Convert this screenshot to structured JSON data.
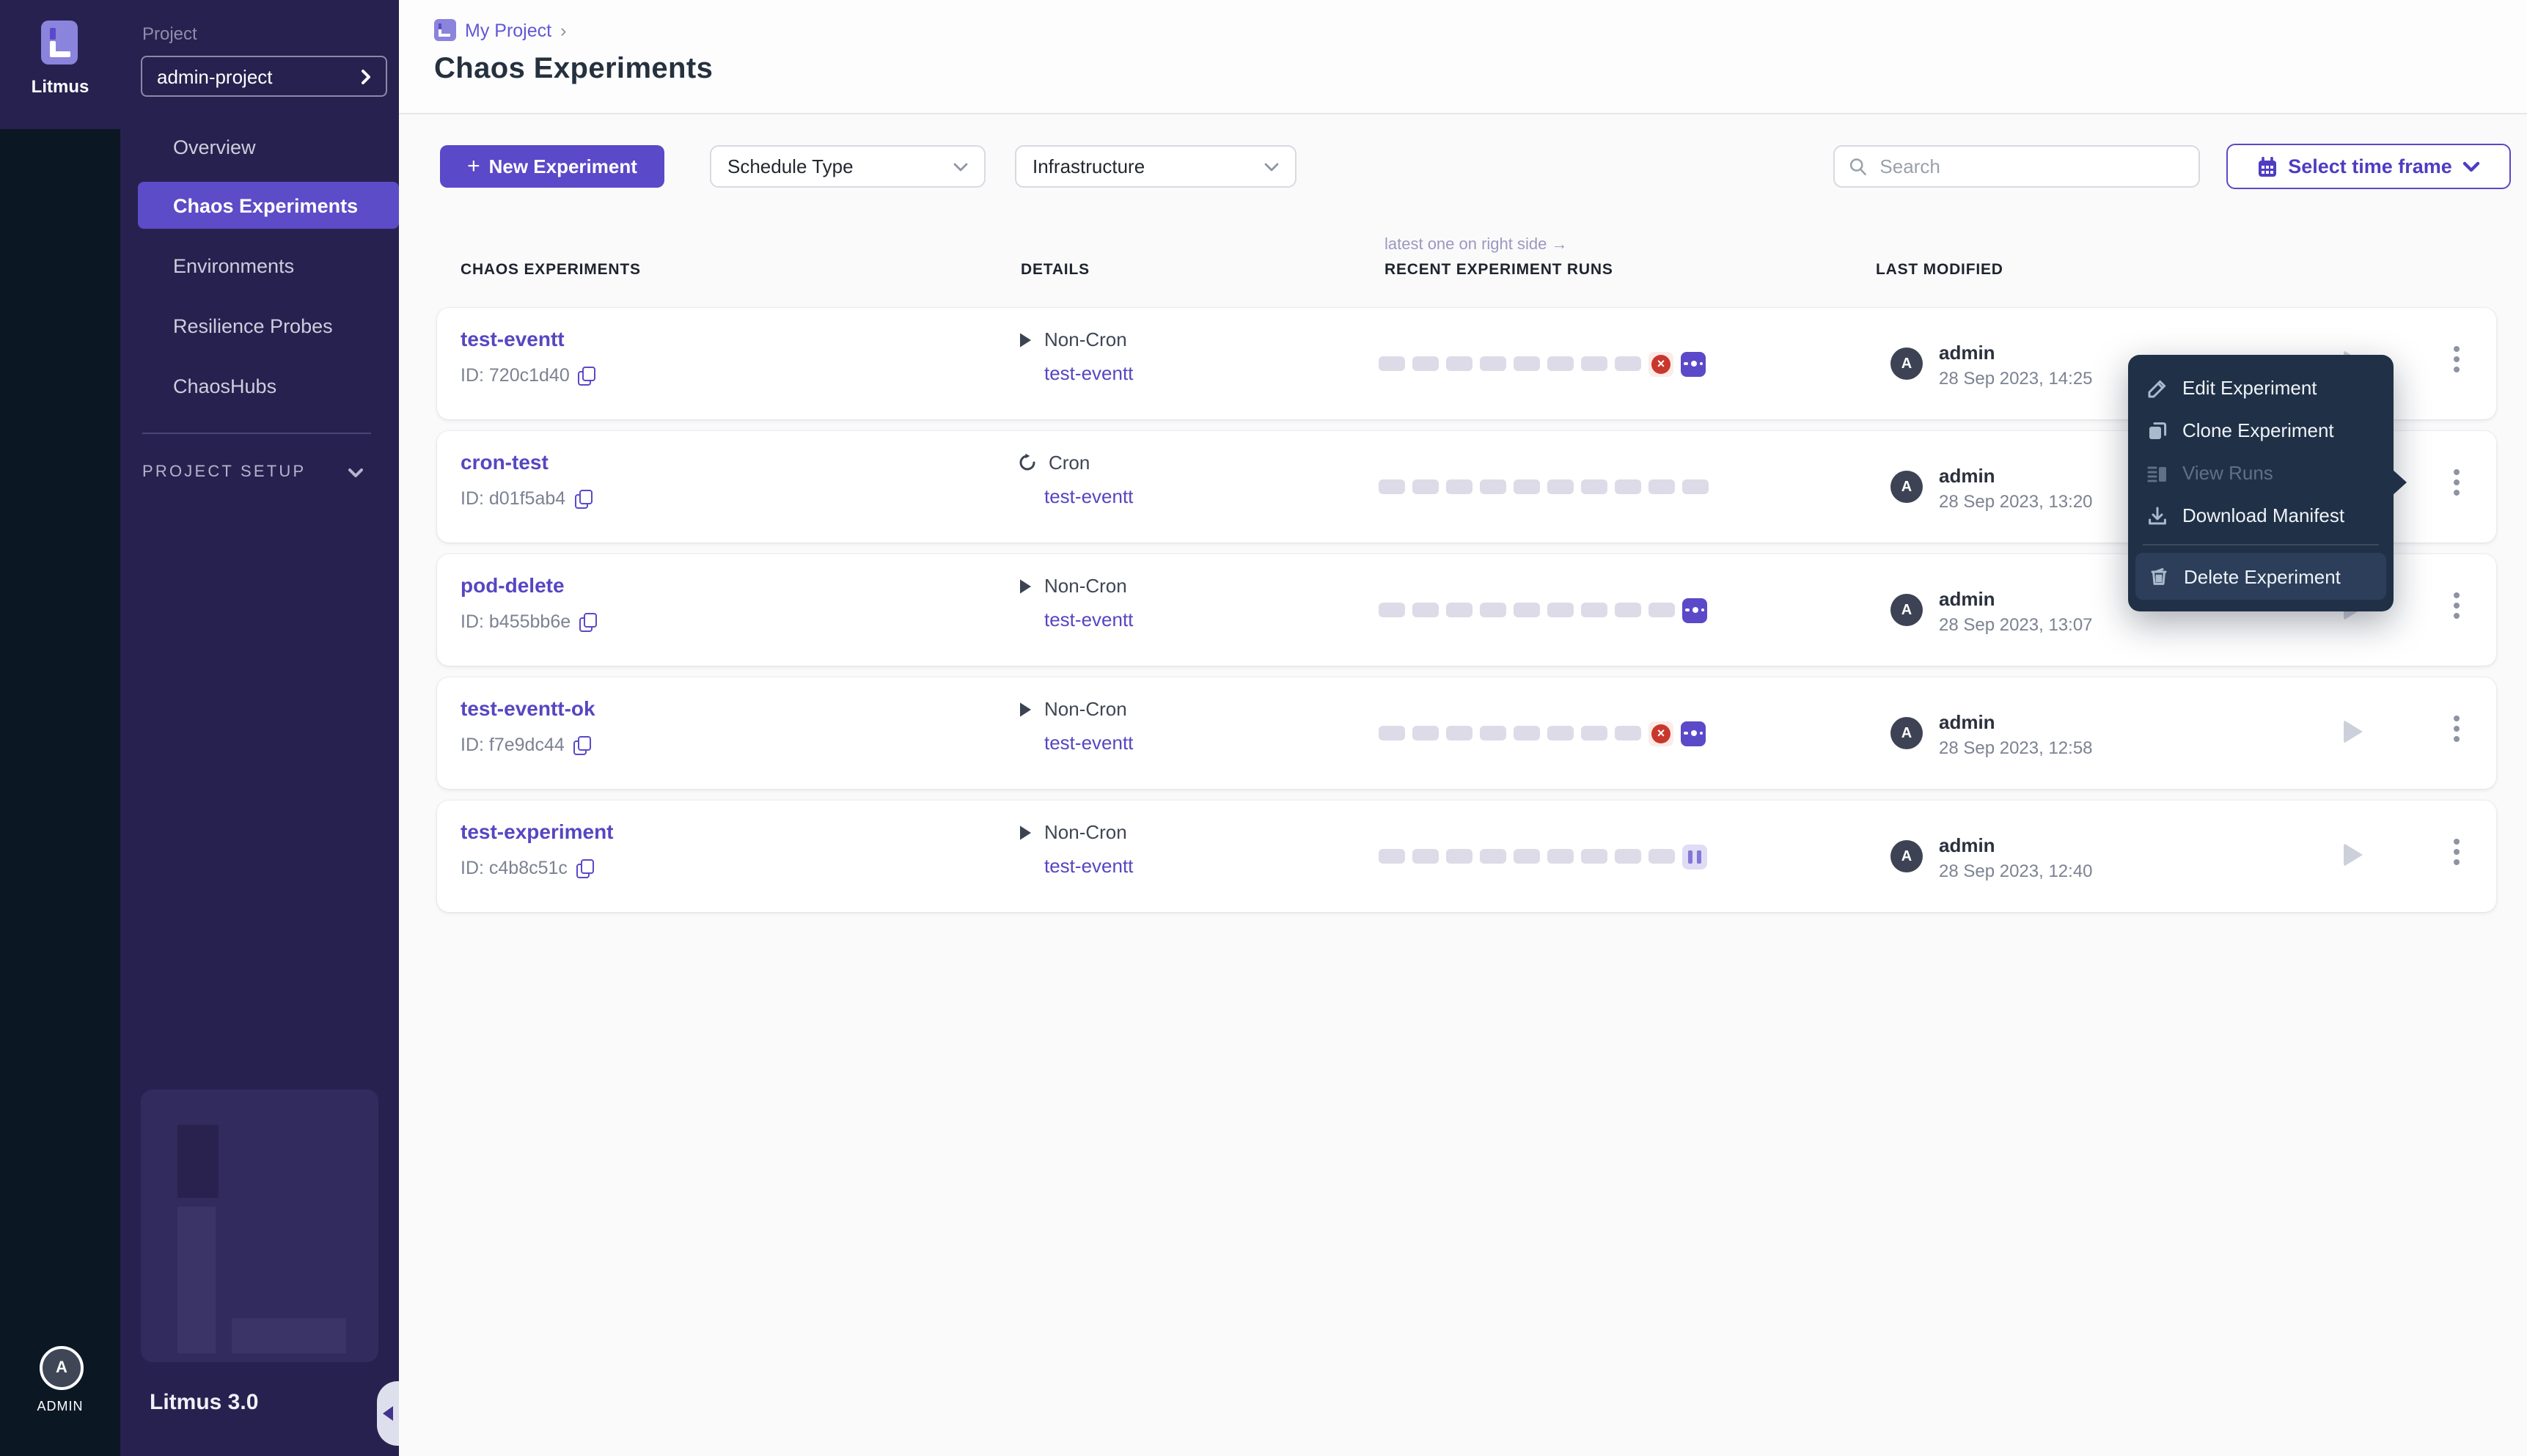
{
  "brand": {
    "name": "Litmus",
    "version": "Litmus 3.0",
    "admin_label": "ADMIN",
    "avatar_letter": "A"
  },
  "colors": {
    "accent": "#5a49c8",
    "sidebar_bg": "#272150",
    "rail_bg": "#0c1724",
    "menu_bg": "#203046",
    "failed_red": "#c9372c",
    "link": "#5646c2",
    "pill_gray": "#dcdbe7"
  },
  "sidebar": {
    "project_label": "Project",
    "project_selector": "admin-project",
    "nav": [
      {
        "label": "Overview",
        "active": false
      },
      {
        "label": "Chaos Experiments",
        "active": true
      },
      {
        "label": "Environments",
        "active": false
      },
      {
        "label": "Resilience Probes",
        "active": false
      },
      {
        "label": "ChaosHubs",
        "active": false
      }
    ],
    "project_setup_label": "PROJECT SETUP"
  },
  "header": {
    "breadcrumb": "My Project",
    "breadcrumb_sep": "›",
    "title": "Chaos Experiments"
  },
  "toolbar": {
    "new_experiment": "New Experiment",
    "plus": "+",
    "schedule_type": "Schedule Type",
    "infrastructure": "Infrastructure",
    "search_placeholder": "Search",
    "time_frame": "Select time frame"
  },
  "table": {
    "runs_note": "latest one on right side →",
    "columns": [
      "CHAOS EXPERIMENTS",
      "DETAILS",
      "RECENT EXPERIMENT RUNS",
      "LAST MODIFIED"
    ],
    "rows": [
      {
        "name": "test-eventt",
        "id": "ID: 720c1d40",
        "schedule": "Non-Cron",
        "link": "test-eventt",
        "runs": [
          "empty",
          "empty",
          "empty",
          "empty",
          "empty",
          "empty",
          "empty",
          "empty",
          "failed",
          "running"
        ],
        "user": "admin",
        "date": "28 Sep 2023, 14:25"
      },
      {
        "name": "cron-test",
        "id": "ID: d01f5ab4",
        "schedule": "Cron",
        "link": "test-eventt",
        "runs": [
          "empty",
          "empty",
          "empty",
          "empty",
          "empty",
          "empty",
          "empty",
          "empty",
          "empty",
          "empty"
        ],
        "user": "admin",
        "date": "28 Sep 2023, 13:20"
      },
      {
        "name": "pod-delete",
        "id": "ID: b455bb6e",
        "schedule": "Non-Cron",
        "link": "test-eventt",
        "runs": [
          "empty",
          "empty",
          "empty",
          "empty",
          "empty",
          "empty",
          "empty",
          "empty",
          "empty",
          "running"
        ],
        "user": "admin",
        "date": "28 Sep 2023, 13:07"
      },
      {
        "name": "test-eventt-ok",
        "id": "ID: f7e9dc44",
        "schedule": "Non-Cron",
        "link": "test-eventt",
        "runs": [
          "empty",
          "empty",
          "empty",
          "empty",
          "empty",
          "empty",
          "empty",
          "empty",
          "failed",
          "running"
        ],
        "user": "admin",
        "date": "28 Sep 2023, 12:58"
      },
      {
        "name": "test-experiment",
        "id": "ID: c4b8c51c",
        "schedule": "Non-Cron",
        "link": "test-eventt",
        "runs": [
          "empty",
          "empty",
          "empty",
          "empty",
          "empty",
          "empty",
          "empty",
          "empty",
          "empty",
          "paused"
        ],
        "user": "admin",
        "date": "28 Sep 2023, 12:40"
      }
    ]
  },
  "menu": {
    "items": [
      {
        "label": "Edit Experiment",
        "disabled": false
      },
      {
        "label": "Clone Experiment",
        "disabled": false
      },
      {
        "label": "View Runs",
        "disabled": true
      },
      {
        "label": "Download Manifest",
        "disabled": false
      },
      {
        "label": "Delete Experiment",
        "disabled": false,
        "danger": true
      }
    ]
  }
}
